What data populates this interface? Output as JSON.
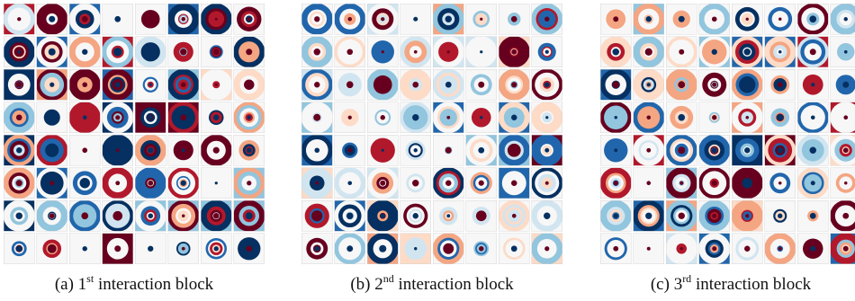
{
  "panels": [
    {
      "id": "a",
      "caption": {
        "label": "(a)",
        "ordinal": "1",
        "suffix": "st",
        "text": "interaction block"
      },
      "grid": {
        "rows": 8,
        "cols": 8,
        "seed": 11,
        "palette": "rdbu",
        "style": "saturated"
      }
    },
    {
      "id": "b",
      "caption": {
        "label": "(b)",
        "ordinal": "2",
        "suffix": "nd",
        "text": "interaction block"
      },
      "grid": {
        "rows": 8,
        "cols": 8,
        "seed": 23,
        "palette": "rdbu",
        "style": "soft"
      }
    },
    {
      "id": "c",
      "caption": {
        "label": "(c)",
        "ordinal": "3",
        "suffix": "rd",
        "text": "interaction block"
      },
      "grid": {
        "rows": 8,
        "cols": 8,
        "seed": 37,
        "palette": "rdbu",
        "style": "mixed"
      }
    }
  ],
  "colors": {
    "deep_red": "#67001f",
    "red": "#b2182b",
    "salmon": "#f4a582",
    "pale_red": "#fddbc7",
    "white": "#f7f7f7",
    "pale_blue": "#d1e5f0",
    "light_blue": "#92c5de",
    "blue": "#2166ac",
    "deep_blue": "#053061",
    "cell_border": "#cfcfcf"
  }
}
